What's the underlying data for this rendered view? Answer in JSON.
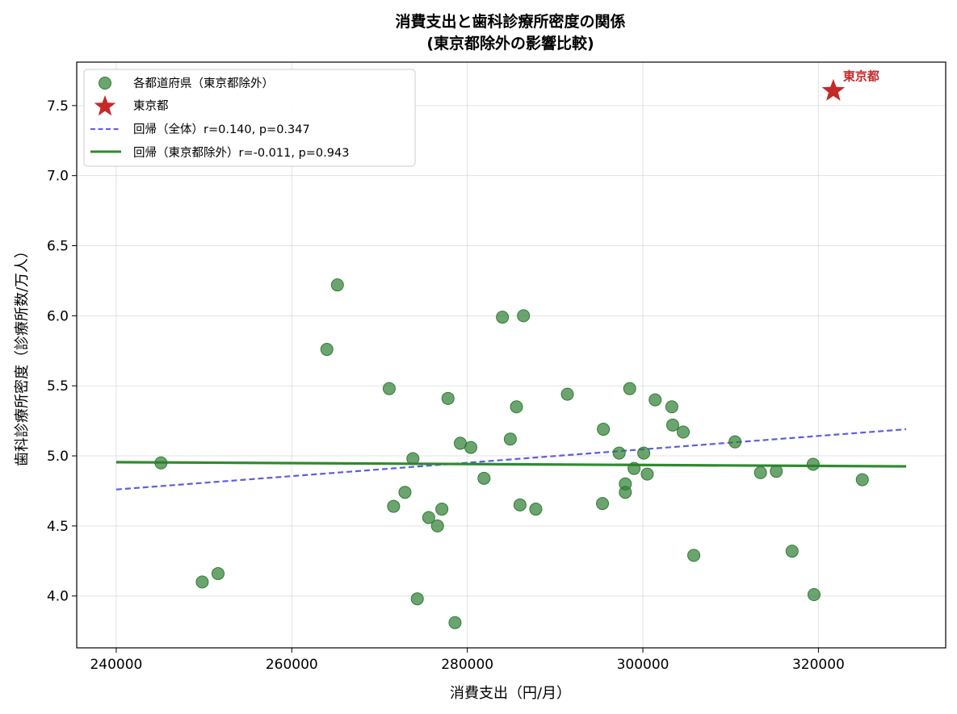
{
  "chart_data": {
    "type": "scatter",
    "title": "消費支出と歯科診療所密度の関係",
    "subtitle": "(東京都除外の影響比較)",
    "xlabel": "消費支出（円/月）",
    "ylabel": "歯科診療所密度（診療所数/万人）",
    "xlim": [
      235500,
      334500
    ],
    "ylim": [
      3.63,
      7.81
    ],
    "x_ticks": [
      240000,
      260000,
      280000,
      300000,
      320000
    ],
    "y_ticks": [
      4.0,
      4.5,
      5.0,
      5.5,
      6.0,
      6.5,
      7.0,
      7.5
    ],
    "x_tick_labels": [
      "240000",
      "260000",
      "280000",
      "300000",
      "320000"
    ],
    "y_tick_labels": [
      "4.0",
      "4.5",
      "5.0",
      "5.5",
      "6.0",
      "6.5",
      "7.0",
      "7.5"
    ],
    "grid": true,
    "legend_position": "top-left",
    "series": [
      {
        "name": "各都道府県（東京都除外）",
        "kind": "scatter",
        "color": "#2e7d32",
        "points": [
          [
            245100,
            4.95
          ],
          [
            249800,
            4.1
          ],
          [
            251600,
            4.16
          ],
          [
            264000,
            5.76
          ],
          [
            265200,
            6.22
          ],
          [
            271100,
            5.48
          ],
          [
            271600,
            4.64
          ],
          [
            272900,
            4.74
          ],
          [
            273800,
            4.98
          ],
          [
            274300,
            3.98
          ],
          [
            275600,
            4.56
          ],
          [
            276600,
            4.5
          ],
          [
            277100,
            4.62
          ],
          [
            277800,
            5.41
          ],
          [
            278600,
            3.81
          ],
          [
            279200,
            5.09
          ],
          [
            280400,
            5.06
          ],
          [
            281900,
            4.84
          ],
          [
            284000,
            5.99
          ],
          [
            284900,
            5.12
          ],
          [
            285600,
            5.35
          ],
          [
            286000,
            4.65
          ],
          [
            286400,
            6.0
          ],
          [
            287800,
            4.62
          ],
          [
            291400,
            5.44
          ],
          [
            295400,
            4.66
          ],
          [
            295500,
            5.19
          ],
          [
            297300,
            5.02
          ],
          [
            298000,
            4.8
          ],
          [
            298000,
            4.74
          ],
          [
            298500,
            5.48
          ],
          [
            299000,
            4.91
          ],
          [
            300100,
            5.02
          ],
          [
            300500,
            4.87
          ],
          [
            301400,
            5.4
          ],
          [
            303300,
            5.35
          ],
          [
            303400,
            5.22
          ],
          [
            304600,
            5.17
          ],
          [
            305800,
            4.29
          ],
          [
            310500,
            5.1
          ],
          [
            313400,
            4.88
          ],
          [
            315200,
            4.89
          ],
          [
            317000,
            4.32
          ],
          [
            319400,
            4.94
          ],
          [
            319500,
            4.01
          ],
          [
            325000,
            4.83
          ]
        ]
      },
      {
        "name": "東京都",
        "kind": "star",
        "color": "#c62828",
        "points": [
          [
            321700,
            7.61
          ]
        ],
        "annotation": "東京都"
      },
      {
        "name": "回帰（全体）r=0.140, p=0.347",
        "kind": "line-dashed",
        "color": "#5c5ce6",
        "points": [
          [
            240000,
            4.76
          ],
          [
            330000,
            5.19
          ]
        ]
      },
      {
        "name": "回帰（東京都除外）r=-0.011, p=0.943",
        "kind": "line",
        "color": "#2e8b2e",
        "points": [
          [
            240000,
            4.955
          ],
          [
            330000,
            4.925
          ]
        ]
      }
    ]
  }
}
